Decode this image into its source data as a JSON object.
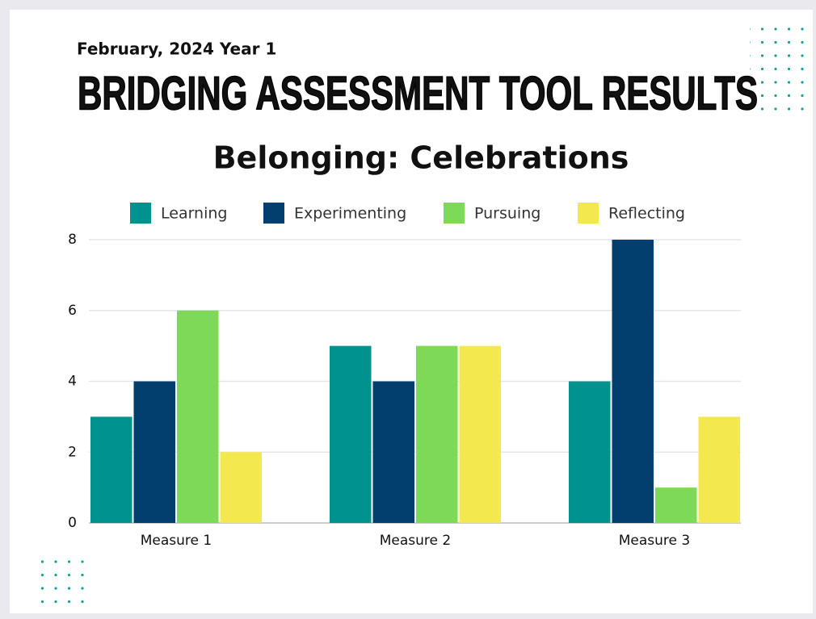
{
  "chart_data": {
    "type": "bar",
    "subtitle": "February, 2024 Year 1",
    "header": "BRIDGING ASSESSMENT TOOL RESULTS",
    "title": "Belonging: Celebrations",
    "categories": [
      "Measure 1",
      "Measure 2",
      "Measure 3"
    ],
    "series": [
      {
        "name": "Learning",
        "color": "#00928f",
        "values": [
          3,
          5,
          4
        ]
      },
      {
        "name": "Experimenting",
        "color": "#033f6e",
        "values": [
          4,
          4,
          8
        ]
      },
      {
        "name": "Pursuing",
        "color": "#7ed957",
        "values": [
          6,
          5,
          1
        ]
      },
      {
        "name": "Reflecting",
        "color": "#f3e94f",
        "values": [
          2,
          5,
          3
        ]
      }
    ],
    "ylim": [
      0,
      8
    ],
    "yticks": [
      0,
      2,
      4,
      6,
      8
    ],
    "grid": true,
    "legend": "top"
  }
}
